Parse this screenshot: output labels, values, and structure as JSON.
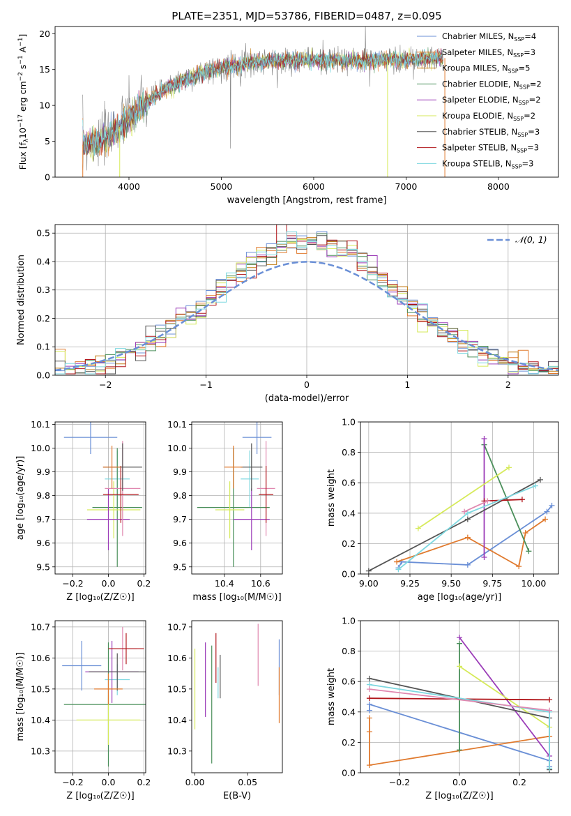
{
  "title": "PLATE=2351, MJD=53786, FIBERID=0487, z=0.095",
  "colors": {
    "chabrier_miles": "#6a8fd6",
    "salpeter_miles": "#e07a2e",
    "kroupa_miles": "#c07a10",
    "chabrier_elodie": "#4a8f5a",
    "salpeter_elodie": "#9b3cb8",
    "kroupa_elodie": "#d6ea5a",
    "chabrier_stelib": "#555555",
    "salpeter_stelib": "#b0151a",
    "kroupa_stelib": "#7ed8e0",
    "pink": "#e088b0",
    "gauss": "#6a8fd6"
  },
  "chart_data": [
    {
      "id": "spectrum",
      "type": "line",
      "xlabel": "wavelength [Angstrom, rest frame]",
      "ylabel_parts": {
        "pre": "Flux [f",
        "sub1": "λ",
        "mid": "10",
        "sup1": "−17",
        "post": " erg cm",
        "sup2": "−2",
        "mid2": " s",
        "sup3": "−1",
        "mid3": " A",
        "sup4": "−1",
        "end": "]"
      },
      "xlim": [
        3200,
        8650
      ],
      "ylim": [
        0,
        21
      ],
      "xticks": [
        4000,
        5000,
        6000,
        7000,
        8000
      ],
      "yticks": [
        0,
        5,
        10,
        15,
        20
      ],
      "legend_position": "right",
      "legend": [
        {
          "pre": "Chabrier MILES, N",
          "sub": "SSP",
          "post": "=4",
          "color": "#6a8fd6"
        },
        {
          "pre": "Salpeter MILES, N",
          "sub": "SSP",
          "post": "=3",
          "color": "#e07a2e"
        },
        {
          "pre": "Kroupa MILES, N",
          "sub": "SSP",
          "post": "=5",
          "color": "#c07a10"
        },
        {
          "pre": "Chabrier ELODIE, N",
          "sub": "SSP",
          "post": "=2",
          "color": "#4a8f5a"
        },
        {
          "pre": "Salpeter ELODIE, N",
          "sub": "SSP",
          "post": "=2",
          "color": "#9b3cb8"
        },
        {
          "pre": "Kroupa ELODIE, N",
          "sub": "SSP",
          "post": "=2",
          "color": "#d6ea5a"
        },
        {
          "pre": "Chabrier STELIB, N",
          "sub": "SSP",
          "post": "=3",
          "color": "#555555"
        },
        {
          "pre": "Salpeter STELIB, N",
          "sub": "SSP",
          "post": "=3",
          "color": "#b0151a"
        },
        {
          "pre": "Kroupa STELIB, N",
          "sub": "SSP",
          "post": "=3",
          "color": "#7ed8e0"
        }
      ],
      "continuum": {
        "x": [
          3500,
          3700,
          3900,
          4100,
          4300,
          4500,
          4700,
          4900,
          5100,
          5300,
          5500,
          5800,
          6100,
          6400,
          6700,
          7000,
          7200,
          7400
        ],
        "y": [
          4.5,
          5.0,
          7.0,
          9.5,
          11.5,
          13.0,
          14.0,
          15.0,
          15.5,
          16.0,
          16.2,
          16.4,
          16.3,
          16.2,
          16.3,
          16.4,
          16.5,
          16.6
        ]
      },
      "drops": [
        {
          "x": 3500,
          "color": "#e07a2e"
        },
        {
          "x": 3900,
          "color": "#d6ea5a"
        },
        {
          "x": 6800,
          "color": "#d6ea5a"
        },
        {
          "x": 7420,
          "color": "#e07a2e"
        }
      ]
    },
    {
      "id": "residuals",
      "type": "step-histogram",
      "xlabel": "(data-model)/error",
      "ylabel": "Normed distribution",
      "xlim": [
        -2.5,
        2.5
      ],
      "ylim": [
        0,
        0.53
      ],
      "xticks": [
        -2,
        -1,
        0,
        1,
        2
      ],
      "xticklabels": [
        "−2",
        "−1",
        "0",
        "1",
        "2"
      ],
      "yticks": [
        0.0,
        0.1,
        0.2,
        0.3,
        0.4,
        0.5
      ],
      "yticklabels": [
        "0.0",
        "0.1",
        "0.2",
        "0.3",
        "0.4",
        "0.5"
      ],
      "grid": true,
      "bin_width": 0.1,
      "gauss_label": "𝒩(0, 1)",
      "legend_position": "top-right"
    },
    {
      "id": "age-vs-Z",
      "type": "errorbar",
      "xlabel": "Z [log₁₀(Z/Z☉)]",
      "ylabel": "age  [log₁₀(age/yr)]",
      "xlim": [
        -0.3,
        0.21
      ],
      "ylim": [
        9.47,
        10.11
      ],
      "xticks": [
        -0.2,
        0.0,
        0.2
      ],
      "xticklabels": [
        "−0.2",
        "0.0",
        "0.2"
      ],
      "yticks": [
        9.5,
        9.6,
        9.7,
        9.8,
        9.9,
        10.0,
        10.1
      ],
      "yticklabels": [
        "9.5",
        "9.6",
        "9.7",
        "9.8",
        "9.9",
        "10.0",
        "10.1"
      ],
      "grid": true,
      "points": [
        {
          "x": -0.1,
          "xerr": 0.15,
          "y": 10.045,
          "yerr": 0.07,
          "color": "#6a8fd6"
        },
        {
          "x": 0.05,
          "xerr": 0.07,
          "y": 9.87,
          "yerr": 0.12,
          "color": "#7ed8e0"
        },
        {
          "x": 0.05,
          "xerr": 0.14,
          "y": 9.75,
          "yerr": 0.25,
          "color": "#4a8f5a"
        },
        {
          "x": 0.03,
          "xerr": 0.15,
          "y": 9.74,
          "yerr": 0.12,
          "color": "#d6ea5a"
        },
        {
          "x": 0.0,
          "xerr": 0.12,
          "y": 9.7,
          "yerr": 0.13,
          "color": "#9b3cb8"
        },
        {
          "x": 0.08,
          "xerr": 0.1,
          "y": 9.83,
          "yerr": 0.2,
          "color": "#e088b0"
        },
        {
          "x": 0.07,
          "xerr": 0.1,
          "y": 9.805,
          "yerr": 0.12,
          "color": "#b0151a"
        },
        {
          "x": 0.08,
          "xerr": 0.11,
          "y": 9.92,
          "yerr": 0.1,
          "color": "#555555"
        },
        {
          "x": 0.02,
          "xerr": 0.05,
          "y": 9.92,
          "yerr": 0.09,
          "color": "#e07a2e"
        }
      ]
    },
    {
      "id": "age-vs-mass",
      "type": "errorbar",
      "xlabel": "mass [log₁₀(M/M☉)]",
      "ylabel": "",
      "xlim": [
        10.22,
        10.72
      ],
      "ylim": [
        9.47,
        10.11
      ],
      "xticks": [
        10.4,
        10.6
      ],
      "xticklabels": [
        "10.4",
        "10.6"
      ],
      "yticks": [
        9.5,
        9.6,
        9.7,
        9.8,
        9.9,
        10.0,
        10.1
      ],
      "yticklabels": [
        "9.5",
        "9.6",
        "9.7",
        "9.8",
        "9.9",
        "10.0",
        "10.1"
      ],
      "grid": true,
      "points": [
        {
          "x": 10.58,
          "xerr": 0.08,
          "y": 10.045,
          "yerr": 0.07,
          "color": "#6a8fd6"
        },
        {
          "x": 10.54,
          "xerr": 0.05,
          "y": 9.87,
          "yerr": 0.12,
          "color": "#7ed8e0"
        },
        {
          "x": 10.45,
          "xerr": 0.2,
          "y": 9.75,
          "yerr": 0.25,
          "color": "#4a8f5a"
        },
        {
          "x": 10.43,
          "xerr": 0.08,
          "y": 9.74,
          "yerr": 0.12,
          "color": "#d6ea5a"
        },
        {
          "x": 10.55,
          "xerr": 0.1,
          "y": 9.7,
          "yerr": 0.13,
          "color": "#9b3cb8"
        },
        {
          "x": 10.63,
          "xerr": 0.05,
          "y": 9.83,
          "yerr": 0.2,
          "color": "#e088b0"
        },
        {
          "x": 10.63,
          "xerr": 0.04,
          "y": 9.805,
          "yerr": 0.12,
          "color": "#b0151a"
        },
        {
          "x": 10.55,
          "xerr": 0.06,
          "y": 9.92,
          "yerr": 0.1,
          "color": "#555555"
        },
        {
          "x": 10.45,
          "xerr": 0.05,
          "y": 9.92,
          "yerr": 0.09,
          "color": "#e07a2e"
        }
      ]
    },
    {
      "id": "mass-weight-vs-age",
      "type": "line",
      "xlabel": "age  [log₁₀(age/yr)]",
      "ylabel": "mass weight",
      "xlim": [
        8.95,
        10.15
      ],
      "ylim": [
        0,
        1.0
      ],
      "xticks": [
        9.0,
        9.25,
        9.5,
        9.75,
        10.0
      ],
      "xticklabels": [
        "9.00",
        "9.25",
        "9.50",
        "9.75",
        "10.00"
      ],
      "yticks": [
        0.0,
        0.2,
        0.4,
        0.6,
        0.8,
        1.0
      ],
      "yticklabels": [
        "0.0",
        "0.2",
        "0.4",
        "0.6",
        "0.8",
        "1.0"
      ],
      "grid": true,
      "series": [
        {
          "color": "#6a8fd6",
          "points": [
            [
              9.18,
              0.04
            ],
            [
              9.2,
              0.08
            ],
            [
              9.6,
              0.06
            ],
            [
              10.08,
              0.41
            ],
            [
              10.11,
              0.45
            ]
          ]
        },
        {
          "color": "#e07a2e",
          "points": [
            [
              9.17,
              0.08
            ],
            [
              9.6,
              0.24
            ],
            [
              9.91,
              0.05
            ],
            [
              9.95,
              0.27
            ],
            [
              10.07,
              0.36
            ]
          ]
        },
        {
          "color": "#4a8f5a",
          "points": [
            [
              9.7,
              0.85
            ],
            [
              9.97,
              0.15
            ]
          ]
        },
        {
          "color": "#9b3cb8",
          "points": [
            [
              9.7,
              0.89
            ],
            [
              9.7,
              0.11
            ]
          ]
        },
        {
          "color": "#d6ea5a",
          "points": [
            [
              9.3,
              0.3
            ],
            [
              9.85,
              0.7
            ]
          ]
        },
        {
          "color": "#555555",
          "points": [
            [
              9.0,
              0.02
            ],
            [
              9.6,
              0.36
            ],
            [
              10.04,
              0.62
            ]
          ]
        },
        {
          "color": "#b0151a",
          "points": [
            [
              9.7,
              0.48
            ],
            [
              9.93,
              0.49
            ]
          ]
        },
        {
          "color": "#7ed8e0",
          "points": [
            [
              9.18,
              0.03
            ],
            [
              9.6,
              0.4
            ],
            [
              10.01,
              0.58
            ]
          ]
        },
        {
          "color": "#e088b0",
          "points": [
            [
              9.58,
              0.41
            ],
            [
              9.72,
              0.48
            ]
          ]
        }
      ]
    },
    {
      "id": "mass-vs-Z",
      "type": "errorbar",
      "xlabel": "Z [log₁₀(Z/Z☉)]",
      "ylabel": "mass [log₁₀(M/M☉)]",
      "xlim": [
        -0.3,
        0.21
      ],
      "ylim": [
        10.23,
        10.72
      ],
      "xticks": [
        -0.2,
        0.0,
        0.2
      ],
      "xticklabels": [
        "−0.2",
        "0.0",
        "0.2"
      ],
      "yticks": [
        10.3,
        10.4,
        10.5,
        10.6,
        10.7
      ],
      "yticklabels": [
        "10.3",
        "10.4",
        "10.5",
        "10.6",
        "10.7"
      ],
      "grid": true,
      "points": [
        {
          "x": -0.15,
          "xerr": 0.11,
          "y": 10.575,
          "yerr": 0.08,
          "color": "#6a8fd6"
        },
        {
          "x": 0.05,
          "xerr": 0.07,
          "y": 10.53,
          "yerr": 0.05,
          "color": "#7ed8e0"
        },
        {
          "x": 0.0,
          "xerr": 0.25,
          "y": 10.45,
          "yerr": 0.2,
          "color": "#4a8f5a"
        },
        {
          "x": 0.0,
          "xerr": 0.18,
          "y": 10.4,
          "yerr": 0.08,
          "color": "#d6ea5a"
        },
        {
          "x": 0.02,
          "xerr": 0.15,
          "y": 10.555,
          "yerr": 0.1,
          "color": "#9b3cb8"
        },
        {
          "x": 0.08,
          "xerr": 0.08,
          "y": 10.63,
          "yerr": 0.07,
          "color": "#e088b0"
        },
        {
          "x": 0.1,
          "xerr": 0.1,
          "y": 10.63,
          "yerr": 0.05,
          "color": "#b0151a"
        },
        {
          "x": 0.05,
          "xerr": 0.16,
          "y": 10.555,
          "yerr": 0.06,
          "color": "#555555"
        },
        {
          "x": 0.0,
          "xerr": 0.08,
          "y": 10.5,
          "yerr": 0.05,
          "color": "#e07a2e"
        }
      ]
    },
    {
      "id": "mass-vs-ebv",
      "type": "errorbar",
      "xlabel": "E(B-V)",
      "ylabel": "",
      "xlim": [
        -0.003,
        0.083
      ],
      "ylim": [
        10.23,
        10.72
      ],
      "xticks": [
        0.0,
        0.05
      ],
      "xticklabels": [
        "0.00",
        "0.05"
      ],
      "yticks": [
        10.3,
        10.4,
        10.5,
        10.6,
        10.7
      ],
      "yticklabels": [
        "10.3",
        "10.4",
        "10.5",
        "10.6",
        "10.7"
      ],
      "grid": false,
      "points": [
        {
          "x": 0.0,
          "y": 10.5,
          "yerr": 0.13,
          "color": "#d6ea5a"
        },
        {
          "x": 0.01,
          "y": 10.53,
          "yerr": 0.12,
          "color": "#9b3cb8"
        },
        {
          "x": 0.016,
          "y": 10.45,
          "yerr": 0.19,
          "color": "#4a8f5a"
        },
        {
          "x": 0.02,
          "y": 10.6,
          "yerr": 0.08,
          "color": "#b0151a"
        },
        {
          "x": 0.022,
          "y": 10.52,
          "yerr": 0.05,
          "color": "#7ed8e0"
        },
        {
          "x": 0.024,
          "y": 10.54,
          "yerr": 0.07,
          "color": "#555555"
        },
        {
          "x": 0.06,
          "y": 10.61,
          "yerr": 0.1,
          "color": "#e088b0"
        },
        {
          "x": 0.08,
          "y": 10.57,
          "yerr": 0.09,
          "color": "#6a8fd6"
        },
        {
          "x": 0.08,
          "y": 10.48,
          "yerr": 0.09,
          "color": "#e07a2e"
        }
      ]
    },
    {
      "id": "mass-weight-vs-Z",
      "type": "line",
      "xlabel": "Z [log₁₀(Z/Z☉)]",
      "ylabel": "mass weight",
      "xlim": [
        -0.33,
        0.33
      ],
      "ylim": [
        0,
        1.0
      ],
      "xticks": [
        -0.2,
        0.0,
        0.2
      ],
      "xticklabels": [
        "−0.2",
        "0.0",
        "0.2"
      ],
      "yticks": [
        0.0,
        0.2,
        0.4,
        0.6,
        0.8,
        1.0
      ],
      "yticklabels": [
        "0.0",
        "0.2",
        "0.4",
        "0.6",
        "0.8",
        "1.0"
      ],
      "grid": true,
      "series": [
        {
          "color": "#6a8fd6",
          "points": [
            [
              -0.3,
              0.41
            ],
            [
              -0.3,
              0.45
            ],
            [
              0.3,
              0.08
            ],
            [
              0.3,
              0.04
            ]
          ]
        },
        {
          "color": "#e07a2e",
          "points": [
            [
              -0.3,
              0.36
            ],
            [
              -0.3,
              0.27
            ],
            [
              -0.3,
              0.05
            ],
            [
              0.3,
              0.24
            ]
          ]
        },
        {
          "color": "#4a8f5a",
          "points": [
            [
              0.0,
              0.85
            ],
            [
              0.0,
              0.15
            ]
          ]
        },
        {
          "color": "#9b3cb8",
          "points": [
            [
              0.0,
              0.89
            ],
            [
              0.3,
              0.11
            ]
          ]
        },
        {
          "color": "#d6ea5a",
          "points": [
            [
              0.0,
              0.7
            ],
            [
              0.3,
              0.3
            ]
          ]
        },
        {
          "color": "#555555",
          "points": [
            [
              -0.3,
              0.62
            ],
            [
              0.3,
              0.36
            ],
            [
              0.3,
              0.02
            ]
          ]
        },
        {
          "color": "#b0151a",
          "points": [
            [
              -0.3,
              0.49
            ],
            [
              0.3,
              0.48
            ]
          ]
        },
        {
          "color": "#7ed8e0",
          "points": [
            [
              -0.3,
              0.58
            ],
            [
              0.3,
              0.4
            ],
            [
              0.3,
              0.03
            ]
          ]
        },
        {
          "color": "#e088b0",
          "points": [
            [
              -0.3,
              0.55
            ],
            [
              0.3,
              0.41
            ]
          ]
        }
      ]
    }
  ]
}
